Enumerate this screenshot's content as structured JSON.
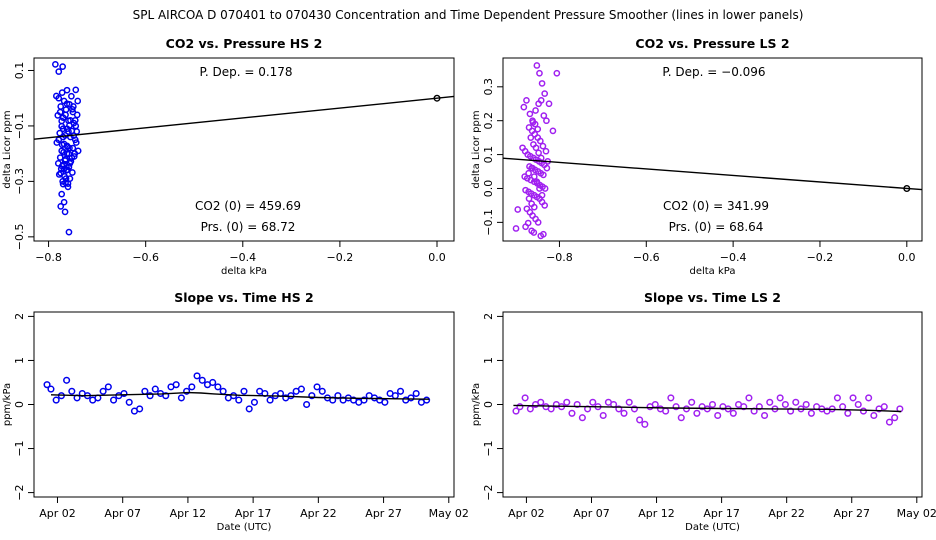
{
  "main_title": "SPL   AIRCOA D   070401 to 070430   Concentration and Time Dependent Pressure Smoother (lines in lower panels)",
  "colors": {
    "hs": "#0000ee",
    "ls": "#a020f0",
    "axis": "#000000"
  },
  "chart_data": [
    {
      "id": "p1",
      "type": "scatter",
      "title": "CO2 vs. Pressure HS 2",
      "xlabel": "delta kPa",
      "ylabel": "delta Licor ppm",
      "xlim": [
        -0.83,
        0.035
      ],
      "ylim": [
        -0.515,
        0.145
      ],
      "xticks": [
        -0.8,
        -0.6,
        -0.4,
        -0.2,
        0.0
      ],
      "xtick_labels": [
        "−0.8",
        "−0.6",
        "−0.4",
        "−0.2",
        "0.0"
      ],
      "yticks": [
        0.1,
        -0.1,
        -0.3,
        -0.5
      ],
      "ytick_labels": [
        "0.1",
        "−0.1",
        "−0.3",
        "−0.5"
      ],
      "annotations": {
        "pdep": "P. Dep. =  0.178",
        "co2_0": "CO2 (0) =  459.69",
        "prs_0": "Prs. (0) =  68.72"
      },
      "fit": {
        "intercept": 0.0,
        "slope": 0.178,
        "x_from": -0.83,
        "x_to": 0.035
      },
      "reference_point": [
        0.0,
        0.0
      ],
      "x": [
        -0.786,
        -0.771,
        -0.762,
        -0.753,
        -0.779,
        -0.768,
        -0.757,
        -0.744,
        -0.775,
        -0.764,
        -0.75,
        -0.74,
        -0.781,
        -0.77,
        -0.759,
        -0.748,
        -0.773,
        -0.762,
        -0.752,
        -0.741,
        -0.777,
        -0.766,
        -0.755,
        -0.745,
        -0.783,
        -0.772,
        -0.761,
        -0.75,
        -0.739,
        -0.769,
        -0.758,
        -0.747,
        -0.776,
        -0.765,
        -0.754,
        -0.743,
        -0.78,
        -0.769,
        -0.758,
        -0.746,
        -0.774,
        -0.763,
        -0.751,
        -0.742,
        -0.778,
        -0.767,
        -0.756,
        -0.745,
        -0.771,
        -0.76,
        -0.749,
        -0.784,
        -0.772,
        -0.762,
        -0.751,
        -0.776,
        -0.765,
        -0.755,
        -0.744,
        -0.77,
        -0.759,
        -0.748,
        -0.779,
        -0.768,
        -0.757,
        -0.773,
        -0.762,
        -0.752,
        -0.766,
        -0.756,
        -0.772,
        -0.761,
        -0.775,
        -0.764,
        -0.77,
        -0.76,
        -0.773,
        -0.768,
        -0.775,
        -0.766,
        -0.758,
        -0.779,
        -0.773,
        -0.757,
        -0.77,
        -0.762,
        -0.768,
        -0.765
      ],
      "y": [
        0.122,
        0.114,
        0.029,
        0.007,
        0.0,
        -0.01,
        -0.022,
        0.03,
        -0.03,
        -0.041,
        -0.05,
        -0.01,
        -0.062,
        -0.07,
        -0.081,
        -0.09,
        -0.101,
        -0.11,
        -0.118,
        -0.06,
        -0.126,
        -0.134,
        -0.14,
        -0.15,
        -0.16,
        -0.168,
        -0.175,
        -0.18,
        -0.19,
        -0.195,
        -0.201,
        -0.21,
        -0.214,
        -0.22,
        -0.228,
        -0.16,
        -0.235,
        -0.24,
        -0.248,
        -0.2,
        -0.255,
        -0.26,
        -0.268,
        -0.12,
        -0.275,
        -0.282,
        -0.29,
        -0.08,
        -0.3,
        -0.308,
        -0.03,
        0.008,
        0.02,
        -0.02,
        -0.04,
        -0.05,
        -0.06,
        -0.08,
        -0.1,
        -0.11,
        -0.12,
        -0.135,
        -0.15,
        -0.165,
        -0.18,
        -0.19,
        -0.2,
        -0.215,
        -0.225,
        -0.235,
        -0.245,
        -0.258,
        -0.27,
        -0.29,
        -0.31,
        -0.32,
        -0.346,
        -0.375,
        -0.39,
        -0.41,
        -0.483,
        0.096,
        -0.082,
        -0.098,
        -0.14,
        -0.172,
        -0.255,
        -0.305
      ]
    },
    {
      "id": "p2",
      "type": "scatter",
      "title": "CO2 vs. Pressure LS 2",
      "xlabel": "delta kPa",
      "ylabel": "delta Licor ppm",
      "xlim": [
        -0.93,
        0.035
      ],
      "ylim": [
        -0.155,
        0.385
      ],
      "xticks": [
        -0.8,
        -0.6,
        -0.4,
        -0.2,
        0.0
      ],
      "xtick_labels": [
        "−0.8",
        "−0.6",
        "−0.4",
        "−0.2",
        "0.0"
      ],
      "yticks": [
        0.3,
        0.2,
        0.1,
        0.0,
        -0.1
      ],
      "ytick_labels": [
        "0.3",
        "0.2",
        "0.1",
        "0.0",
        "−0.1"
      ],
      "annotations": {
        "pdep": "P. Dep. =  −0.096",
        "co2_0": "CO2 (0) =  341.99",
        "prs_0": "Prs. (0) =  68.64"
      },
      "fit": {
        "intercept": 0.0,
        "slope": -0.096,
        "x_from": -0.93,
        "x_to": 0.035
      },
      "reference_point": [
        0.0,
        0.0
      ],
      "x": [
        -0.9,
        -0.896,
        -0.878,
        -0.872,
        -0.864,
        -0.859,
        -0.852,
        -0.846,
        -0.84,
        -0.834,
        -0.824,
        -0.815,
        -0.806,
        -0.882,
        -0.876,
        -0.868,
        -0.861,
        -0.855,
        -0.848,
        -0.842,
        -0.836,
        -0.83,
        -0.827,
        -0.87,
        -0.863,
        -0.857,
        -0.85,
        -0.844,
        -0.838,
        -0.885,
        -0.879,
        -0.873,
        -0.867,
        -0.86,
        -0.854,
        -0.847,
        -0.841,
        -0.835,
        -0.829,
        -0.869,
        -0.862,
        -0.856,
        -0.849,
        -0.843,
        -0.837,
        -0.88,
        -0.874,
        -0.866,
        -0.858,
        -0.851,
        -0.845,
        -0.839,
        -0.833,
        -0.878,
        -0.871,
        -0.865,
        -0.858,
        -0.852,
        -0.846,
        -0.84,
        -0.834,
        -0.875,
        -0.868,
        -0.862,
        -0.855,
        -0.849,
        -0.843,
        -0.837,
        -0.831,
        -0.871,
        -0.864,
        -0.858,
        -0.852,
        -0.846,
        -0.84,
        -0.866,
        -0.86,
        -0.854,
        -0.848,
        -0.842,
        -0.862,
        -0.856,
        -0.85,
        -0.87,
        -0.864,
        -0.858
      ],
      "y": [
        -0.118,
        -0.062,
        -0.113,
        -0.102,
        -0.125,
        -0.13,
        0.363,
        0.34,
        0.31,
        0.28,
        0.25,
        0.17,
        0.34,
        0.24,
        0.26,
        0.22,
        0.195,
        0.23,
        0.25,
        0.26,
        0.215,
        0.2,
        0.08,
        0.18,
        0.17,
        0.16,
        0.15,
        0.14,
        0.125,
        0.12,
        0.11,
        0.1,
        0.095,
        0.09,
        0.085,
        0.08,
        0.075,
        0.07,
        0.06,
        0.065,
        0.06,
        0.055,
        0.05,
        0.045,
        0.04,
        0.035,
        0.03,
        0.025,
        0.02,
        0.015,
        0.01,
        0.005,
        0.0,
        -0.005,
        -0.01,
        -0.015,
        -0.02,
        -0.025,
        -0.03,
        -0.04,
        -0.05,
        -0.06,
        -0.07,
        -0.08,
        -0.09,
        -0.1,
        -0.14,
        -0.135,
        0.11,
        0.045,
        0.06,
        0.035,
        0.02,
        0.0,
        -0.02,
        0.15,
        0.13,
        0.12,
        0.105,
        0.09,
        0.2,
        0.19,
        0.175,
        -0.03,
        -0.045,
        -0.055
      ]
    },
    {
      "id": "p3",
      "type": "line+scatter",
      "title": "Slope vs. Time HS 2",
      "xlabel": "Date (UTC)",
      "ylabel": "ppm/kPa",
      "xlim": [
        -0.8,
        31.4
      ],
      "ylim": [
        -2.1,
        2.1
      ],
      "xticks": [
        1,
        6,
        11,
        16,
        21,
        26,
        31
      ],
      "xtick_labels": [
        "Apr 02",
        "Apr 07",
        "Apr 12",
        "Apr 17",
        "Apr 22",
        "Apr 27",
        "May 02"
      ],
      "yticks": [
        -2,
        -1,
        0,
        1,
        2
      ],
      "ytick_labels": [
        "−2",
        "−1",
        "0",
        "1",
        "2"
      ],
      "smoother": {
        "x": [
          0.5,
          3,
          6,
          9,
          11,
          12,
          13,
          15,
          18,
          21,
          24,
          27,
          29.5
        ],
        "y": [
          0.22,
          0.2,
          0.22,
          0.24,
          0.27,
          0.26,
          0.24,
          0.21,
          0.19,
          0.16,
          0.14,
          0.13,
          0.12
        ]
      },
      "x": [
        0.2,
        0.5,
        0.9,
        1.3,
        1.7,
        2.1,
        2.5,
        2.9,
        3.3,
        3.7,
        4.1,
        4.5,
        4.9,
        5.3,
        5.7,
        6.1,
        6.5,
        6.9,
        7.3,
        7.7,
        8.1,
        8.5,
        8.9,
        9.3,
        9.7,
        10.1,
        10.5,
        10.9,
        11.3,
        11.7,
        12.1,
        12.5,
        12.9,
        13.3,
        13.7,
        14.1,
        14.5,
        14.9,
        15.3,
        15.7,
        16.1,
        16.5,
        16.9,
        17.3,
        17.7,
        18.1,
        18.5,
        18.9,
        19.3,
        19.7,
        20.1,
        20.5,
        20.9,
        21.3,
        21.7,
        22.1,
        22.5,
        22.9,
        23.3,
        23.7,
        24.1,
        24.5,
        24.9,
        25.3,
        25.7,
        26.1,
        26.5,
        26.9,
        27.3,
        27.7,
        28.1,
        28.5,
        28.9,
        29.3
      ],
      "y": [
        0.45,
        0.35,
        0.1,
        0.2,
        0.55,
        0.3,
        0.15,
        0.25,
        0.2,
        0.1,
        0.15,
        0.3,
        0.4,
        0.1,
        0.2,
        0.25,
        0.05,
        -0.15,
        -0.1,
        0.3,
        0.2,
        0.35,
        0.25,
        0.2,
        0.4,
        0.45,
        0.15,
        0.3,
        0.4,
        0.65,
        0.55,
        0.45,
        0.5,
        0.4,
        0.3,
        0.15,
        0.2,
        0.1,
        0.3,
        -0.1,
        0.05,
        0.3,
        0.25,
        0.1,
        0.2,
        0.25,
        0.15,
        0.2,
        0.3,
        0.35,
        0.0,
        0.2,
        0.4,
        0.3,
        0.15,
        0.1,
        0.2,
        0.1,
        0.15,
        0.1,
        0.05,
        0.1,
        0.2,
        0.15,
        0.1,
        0.05,
        0.25,
        0.2,
        0.3,
        0.1,
        0.15,
        0.25,
        0.05,
        0.1
      ]
    },
    {
      "id": "p4",
      "type": "line+scatter",
      "title": "Slope vs. Time LS 2",
      "xlabel": "Date (UTC)",
      "ylabel": "ppm/kPa",
      "xlim": [
        -0.8,
        31.4
      ],
      "ylim": [
        -2.1,
        2.1
      ],
      "xticks": [
        1,
        6,
        11,
        16,
        21,
        26,
        31
      ],
      "xtick_labels": [
        "Apr 02",
        "Apr 07",
        "Apr 12",
        "Apr 17",
        "Apr 22",
        "Apr 27",
        "May 02"
      ],
      "yticks": [
        -2,
        -1,
        0,
        1,
        2
      ],
      "ytick_labels": [
        "−2",
        "−1",
        "0",
        "1",
        "2"
      ],
      "smoother": {
        "x": [
          0.0,
          4,
          8,
          12,
          16,
          20,
          24,
          27,
          29.8
        ],
        "y": [
          -0.02,
          -0.04,
          -0.06,
          -0.08,
          -0.09,
          -0.1,
          -0.11,
          -0.13,
          -0.16
        ]
      },
      "x": [
        0.2,
        0.5,
        0.9,
        1.3,
        1.7,
        2.1,
        2.5,
        2.9,
        3.3,
        3.7,
        4.1,
        4.5,
        4.9,
        5.3,
        5.7,
        6.1,
        6.5,
        6.9,
        7.3,
        7.7,
        8.1,
        8.5,
        8.9,
        9.3,
        9.7,
        10.1,
        10.5,
        10.9,
        11.3,
        11.7,
        12.1,
        12.5,
        12.9,
        13.3,
        13.7,
        14.1,
        14.5,
        14.9,
        15.3,
        15.7,
        16.1,
        16.5,
        16.9,
        17.3,
        17.7,
        18.1,
        18.5,
        18.9,
        19.3,
        19.7,
        20.1,
        20.5,
        20.9,
        21.3,
        21.7,
        22.1,
        22.5,
        22.9,
        23.3,
        23.7,
        24.1,
        24.5,
        24.9,
        25.3,
        25.7,
        26.1,
        26.5,
        26.9,
        27.3,
        27.7,
        28.1,
        28.5,
        28.9,
        29.3,
        29.7
      ],
      "y": [
        -0.15,
        -0.05,
        0.15,
        -0.1,
        0.0,
        0.05,
        -0.05,
        -0.1,
        0.0,
        -0.05,
        0.05,
        -0.2,
        0.0,
        -0.3,
        -0.1,
        0.05,
        -0.05,
        -0.25,
        0.05,
        0.0,
        -0.1,
        -0.2,
        0.05,
        -0.1,
        -0.35,
        -0.45,
        -0.05,
        0.0,
        -0.1,
        -0.15,
        0.15,
        -0.05,
        -0.3,
        -0.1,
        0.05,
        -0.2,
        -0.05,
        -0.1,
        0.0,
        -0.25,
        -0.05,
        -0.1,
        -0.2,
        0.0,
        -0.05,
        0.15,
        -0.15,
        -0.05,
        -0.25,
        0.05,
        -0.1,
        0.15,
        0.0,
        -0.15,
        0.05,
        -0.1,
        0.0,
        -0.2,
        -0.05,
        -0.1,
        -0.15,
        -0.1,
        0.15,
        -0.05,
        -0.2,
        0.15,
        0.0,
        -0.15,
        0.15,
        -0.25,
        -0.1,
        -0.05,
        -0.4,
        -0.3,
        -0.1
      ]
    }
  ]
}
